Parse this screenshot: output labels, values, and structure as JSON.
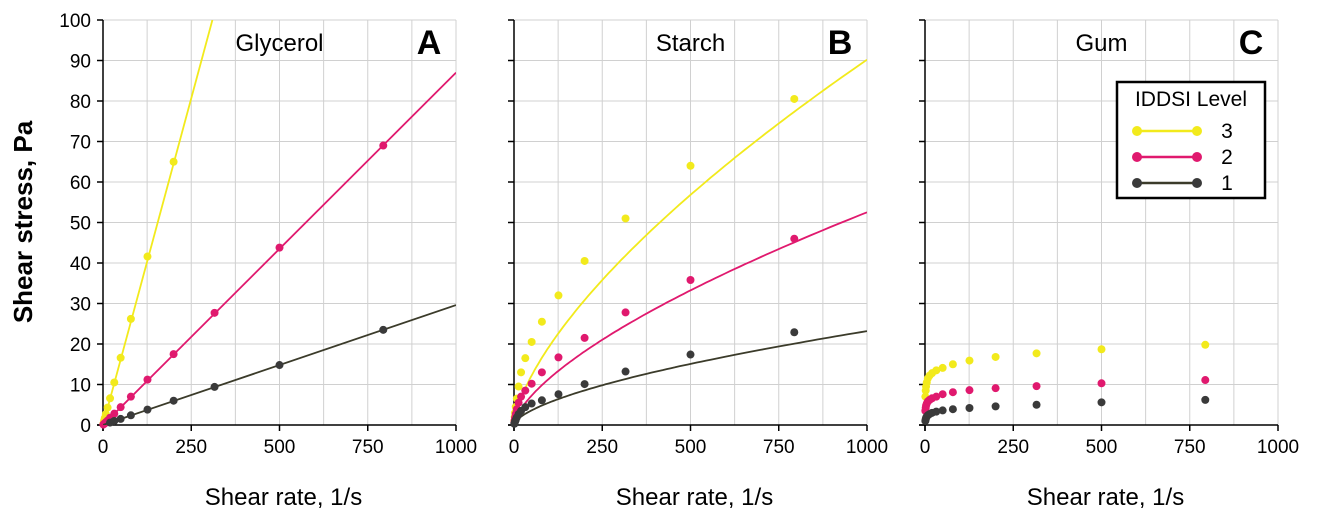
{
  "chart_data": [
    {
      "type": "line",
      "panel_label": "A",
      "title": "Glycerol",
      "xlabel": "Shear rate, 1/s",
      "ylabel": "Shear stress, Pa",
      "xlim": [
        0,
        1000
      ],
      "ylim": [
        0,
        100
      ],
      "xticks": [
        "0",
        "250",
        "500",
        "750",
        "1000"
      ],
      "yticks": [
        "0",
        "10",
        "20",
        "30",
        "40",
        "50",
        "60",
        "70",
        "80",
        "90",
        "100"
      ],
      "grid": true,
      "series": [
        {
          "name": "3",
          "color": "#f2ea1c",
          "x": [
            1,
            3,
            5,
            8,
            13,
            20,
            32,
            50,
            79,
            126,
            200
          ],
          "y": [
            0.3,
            1,
            1.7,
            2.7,
            4.3,
            6.6,
            10.5,
            16.6,
            26.2,
            41.6,
            65
          ],
          "line": [
            [
              0,
              0
            ],
            [
              310,
              100
            ]
          ]
        },
        {
          "name": "2",
          "color": "#e0196e",
          "x": [
            1,
            3,
            5,
            8,
            13,
            20,
            32,
            50,
            79,
            126,
            200,
            316,
            500,
            794
          ],
          "y": [
            0.1,
            0.3,
            0.4,
            0.7,
            1.1,
            1.8,
            2.8,
            4.4,
            7,
            11.2,
            17.5,
            27.7,
            43.8,
            69
          ],
          "line": [
            [
              0,
              0
            ],
            [
              1000,
              87
            ]
          ]
        },
        {
          "name": "1",
          "color": "#3a3a3a",
          "linecolor": "#3b3b2a",
          "x": [
            20,
            32,
            50,
            79,
            126,
            200,
            316,
            500,
            794
          ],
          "y": [
            0.6,
            1,
            1.5,
            2.4,
            3.8,
            6,
            9.4,
            14.8,
            23.5
          ],
          "line": [
            [
              0,
              0
            ],
            [
              1000,
              29.6
            ]
          ]
        }
      ]
    },
    {
      "type": "line",
      "panel_label": "B",
      "title": "Starch",
      "xlabel": "Shear rate, 1/s",
      "xlim": [
        0,
        1000
      ],
      "ylim": [
        0,
        100
      ],
      "xticks": [
        "0",
        "250",
        "500",
        "750",
        "1000"
      ],
      "grid": true,
      "series": [
        {
          "name": "3",
          "color": "#f2ea1c",
          "x": [
            1,
            2,
            3,
            5,
            8,
            13,
            20,
            32,
            50,
            79,
            126,
            200,
            316,
            500,
            794
          ],
          "y": [
            1,
            2,
            3,
            4.5,
            6.5,
            9.5,
            13,
            16.5,
            20.5,
            25.5,
            32,
            40.5,
            51,
            64,
            80.5
          ],
          "curve": [
            0.9,
            0.667,
            1000
          ]
        },
        {
          "name": "2",
          "color": "#e0196e",
          "x": [
            1,
            2,
            3,
            5,
            8,
            13,
            20,
            32,
            50,
            79,
            126,
            200,
            316,
            500,
            794
          ],
          "y": [
            0.6,
            1.2,
            1.8,
            2.7,
            3.9,
            5.5,
            7,
            8.5,
            10.2,
            13,
            16.7,
            21.5,
            27.8,
            35.8,
            46
          ],
          "curve": [
            0.55,
            0.66,
            1000
          ]
        },
        {
          "name": "1",
          "color": "#3a3a3a",
          "linecolor": "#3b3b2a",
          "x": [
            1,
            2,
            3,
            5,
            8,
            13,
            20,
            32,
            50,
            79,
            126,
            200,
            316,
            500,
            794
          ],
          "y": [
            0.3,
            0.6,
            0.9,
            1.3,
            1.9,
            2.7,
            3.5,
            4.4,
            5.3,
            6.1,
            7.6,
            10.1,
            13.2,
            17.4,
            22.9
          ],
          "curve": [
            0.32,
            0.62,
            1000
          ]
        }
      ]
    },
    {
      "type": "line",
      "panel_label": "C",
      "title": "Gum",
      "xlabel": "Shear rate, 1/s",
      "xlim": [
        0,
        1000
      ],
      "ylim": [
        0,
        100
      ],
      "xticks": [
        "0",
        "250",
        "500",
        "750",
        "1000"
      ],
      "grid": true,
      "legend": {
        "title": "IDDSI Level",
        "position": "top-right",
        "entries": [
          "3",
          "2",
          "1"
        ]
      },
      "series": [
        {
          "name": "3",
          "color": "#f2ea1c",
          "x": [
            1,
            2,
            3,
            5,
            8,
            13,
            20,
            32,
            50,
            79,
            126,
            200,
            316,
            500,
            794
          ],
          "y": [
            7,
            8.5,
            9.5,
            10.5,
            11.5,
            12.2,
            12.8,
            13.5,
            14.1,
            15,
            15.9,
            16.8,
            17.7,
            18.7,
            19.8
          ],
          "curve": [
            8.5,
            0.13,
            1
          ]
        },
        {
          "name": "2",
          "color": "#e0196e",
          "x": [
            1,
            2,
            3,
            5,
            8,
            13,
            20,
            32,
            50,
            79,
            126,
            200,
            316,
            500,
            794
          ],
          "y": [
            3.5,
            4.2,
            4.8,
            5.3,
            5.8,
            6.2,
            6.6,
            7,
            7.6,
            8.1,
            8.6,
            9.1,
            9.6,
            10.3,
            11.1
          ],
          "curve": [
            4.3,
            0.14,
            1
          ]
        },
        {
          "name": "1",
          "color": "#3a3a3a",
          "linecolor": "#3b3b2a",
          "x": [
            1,
            2,
            3,
            5,
            8,
            13,
            20,
            32,
            50,
            79,
            126,
            200,
            316,
            500,
            794
          ],
          "y": [
            1,
            1.4,
            1.8,
            2.1,
            2.4,
            2.7,
            3,
            3.3,
            3.6,
            3.9,
            4.2,
            4.6,
            5,
            5.6,
            6.2
          ],
          "curve": [
            1.9,
            0.17,
            1
          ]
        }
      ]
    }
  ]
}
